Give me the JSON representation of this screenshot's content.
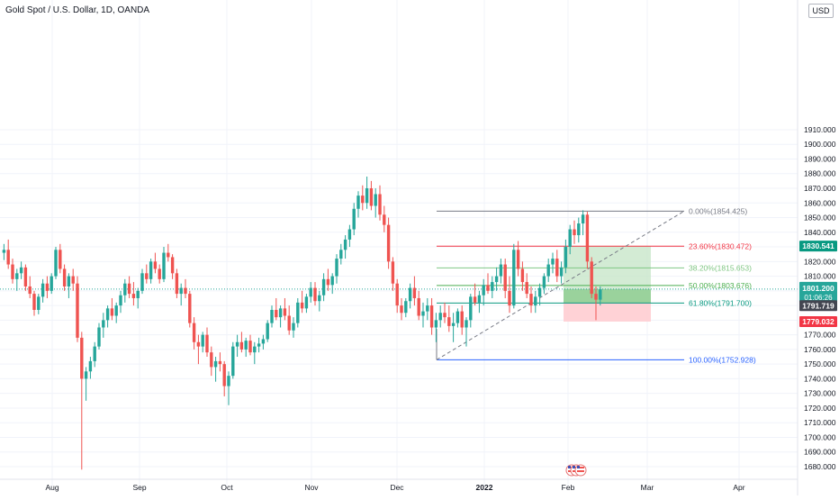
{
  "header": {
    "title": "Gold Spot / U.S. Dollar, 1D, OANDA",
    "currency_button": "USD"
  },
  "colors": {
    "up": "#26a69a",
    "down": "#ef5350",
    "fib_0": "#787b86",
    "fib_236": "#f23645",
    "fib_382": "#81c784",
    "fib_500": "#4caf50",
    "fib_618": "#089981",
    "fib_100": "#2962ff",
    "profit_zone": "#c8e6c9",
    "loss_zone": "#ffcdd2",
    "current_price_tag": "#26a69a",
    "target_tag": "#089981",
    "stop_tag": "#f23645"
  },
  "price_axis": {
    "ticks": [
      "1910.000",
      "1900.000",
      "1890.000",
      "1880.000",
      "1870.000",
      "1860.000",
      "1850.000",
      "1840.000",
      "1830.000",
      "1820.000",
      "1810.000",
      "1800.000",
      "1790.000",
      "1780.000",
      "1770.000",
      "1760.000",
      "1750.000",
      "1740.000",
      "1730.000",
      "1720.000",
      "1710.000",
      "1700.000",
      "1690.000",
      "1680.000"
    ]
  },
  "time_axis": {
    "labels": [
      "Aug",
      "Sep",
      "Oct",
      "Nov",
      "Dec",
      "2022",
      "Feb",
      "Mar",
      "Apr"
    ]
  },
  "price_tags": {
    "target": "1830.541",
    "current": "1801.200",
    "countdown": "01:06:26",
    "entry": "1791.719",
    "stop": "1779.032"
  },
  "fib_labels": {
    "l0": "0.00%(1854.425)",
    "l236": "23.60%(1830.472)",
    "l382": "38.20%(1815.653)",
    "l500": "50.00%(1803.676)",
    "l618": "61.80%(1791.700)",
    "l100": "100.00%(1752.928)"
  },
  "chart_data": {
    "type": "candlestick",
    "symbol": "Gold Spot / U.S. Dollar",
    "interval": "1D",
    "source": "OANDA",
    "ylim": [
      1675,
      1915
    ],
    "x_labels": [
      "Aug",
      "Sep",
      "Oct",
      "Nov",
      "Dec",
      "2022",
      "Feb",
      "Mar",
      "Apr"
    ],
    "fibonacci_retracement": [
      {
        "level": "0.00%",
        "price": 1854.425
      },
      {
        "level": "23.60%",
        "price": 1830.472
      },
      {
        "level": "38.20%",
        "price": 1815.653
      },
      {
        "level": "50.00%",
        "price": 1803.676
      },
      {
        "level": "61.80%",
        "price": 1791.7
      },
      {
        "level": "100.00%",
        "price": 1752.928
      }
    ],
    "long_position": {
      "entry": 1791.719,
      "target": 1830.541,
      "stop": 1779.032
    },
    "last_price": 1801.2,
    "candles": [
      [
        1826,
        1832,
        1821,
        1828
      ],
      [
        1828,
        1835,
        1815,
        1818
      ],
      [
        1818,
        1822,
        1805,
        1808
      ],
      [
        1808,
        1815,
        1800,
        1812
      ],
      [
        1812,
        1820,
        1808,
        1816
      ],
      [
        1816,
        1818,
        1800,
        1803
      ],
      [
        1803,
        1810,
        1795,
        1798
      ],
      [
        1798,
        1800,
        1783,
        1787
      ],
      [
        1787,
        1798,
        1784,
        1796
      ],
      [
        1796,
        1808,
        1792,
        1805
      ],
      [
        1805,
        1810,
        1795,
        1800
      ],
      [
        1800,
        1812,
        1798,
        1810
      ],
      [
        1810,
        1830,
        1808,
        1828
      ],
      [
        1828,
        1832,
        1812,
        1815
      ],
      [
        1815,
        1818,
        1800,
        1803
      ],
      [
        1803,
        1812,
        1795,
        1810
      ],
      [
        1810,
        1815,
        1800,
        1805
      ],
      [
        1805,
        1810,
        1765,
        1768
      ],
      [
        1768,
        1772,
        1678,
        1740
      ],
      [
        1740,
        1748,
        1725,
        1745
      ],
      [
        1745,
        1755,
        1740,
        1752
      ],
      [
        1752,
        1765,
        1748,
        1762
      ],
      [
        1762,
        1778,
        1760,
        1775
      ],
      [
        1775,
        1785,
        1768,
        1780
      ],
      [
        1780,
        1790,
        1775,
        1788
      ],
      [
        1788,
        1795,
        1780,
        1783
      ],
      [
        1783,
        1792,
        1778,
        1790
      ],
      [
        1790,
        1800,
        1785,
        1797
      ],
      [
        1797,
        1808,
        1792,
        1805
      ],
      [
        1805,
        1810,
        1795,
        1798
      ],
      [
        1798,
        1806,
        1790,
        1795
      ],
      [
        1795,
        1802,
        1788,
        1800
      ],
      [
        1800,
        1815,
        1798,
        1812
      ],
      [
        1812,
        1818,
        1805,
        1808
      ],
      [
        1808,
        1822,
        1805,
        1820
      ],
      [
        1820,
        1826,
        1812,
        1815
      ],
      [
        1815,
        1818,
        1805,
        1808
      ],
      [
        1808,
        1830,
        1806,
        1826
      ],
      [
        1826,
        1832,
        1820,
        1823
      ],
      [
        1823,
        1825,
        1808,
        1812
      ],
      [
        1812,
        1815,
        1795,
        1798
      ],
      [
        1798,
        1805,
        1790,
        1802
      ],
      [
        1802,
        1808,
        1795,
        1798
      ],
      [
        1798,
        1800,
        1775,
        1778
      ],
      [
        1778,
        1782,
        1760,
        1765
      ],
      [
        1765,
        1770,
        1750,
        1762
      ],
      [
        1762,
        1772,
        1758,
        1770
      ],
      [
        1770,
        1775,
        1755,
        1758
      ],
      [
        1758,
        1762,
        1742,
        1748
      ],
      [
        1748,
        1755,
        1738,
        1752
      ],
      [
        1752,
        1758,
        1745,
        1750
      ],
      [
        1750,
        1752,
        1728,
        1735
      ],
      [
        1735,
        1745,
        1722,
        1742
      ],
      [
        1742,
        1765,
        1740,
        1762
      ],
      [
        1762,
        1770,
        1755,
        1765
      ],
      [
        1765,
        1772,
        1758,
        1760
      ],
      [
        1760,
        1768,
        1755,
        1766
      ],
      [
        1766,
        1770,
        1756,
        1758
      ],
      [
        1758,
        1765,
        1750,
        1762
      ],
      [
        1762,
        1768,
        1758,
        1764
      ],
      [
        1764,
        1770,
        1760,
        1767
      ],
      [
        1767,
        1780,
        1765,
        1778
      ],
      [
        1778,
        1790,
        1775,
        1787
      ],
      [
        1787,
        1795,
        1780,
        1782
      ],
      [
        1782,
        1790,
        1775,
        1788
      ],
      [
        1788,
        1795,
        1780,
        1783
      ],
      [
        1783,
        1790,
        1770,
        1773
      ],
      [
        1773,
        1782,
        1768,
        1778
      ],
      [
        1778,
        1795,
        1775,
        1792
      ],
      [
        1792,
        1800,
        1785,
        1788
      ],
      [
        1788,
        1798,
        1785,
        1796
      ],
      [
        1796,
        1806,
        1792,
        1802
      ],
      [
        1802,
        1806,
        1790,
        1793
      ],
      [
        1793,
        1800,
        1786,
        1797
      ],
      [
        1797,
        1812,
        1793,
        1808
      ],
      [
        1808,
        1815,
        1800,
        1804
      ],
      [
        1804,
        1812,
        1798,
        1810
      ],
      [
        1810,
        1825,
        1805,
        1822
      ],
      [
        1822,
        1832,
        1818,
        1828
      ],
      [
        1828,
        1838,
        1822,
        1835
      ],
      [
        1835,
        1845,
        1830,
        1842
      ],
      [
        1842,
        1860,
        1838,
        1856
      ],
      [
        1856,
        1868,
        1850,
        1865
      ],
      [
        1865,
        1872,
        1855,
        1860
      ],
      [
        1860,
        1878,
        1856,
        1870
      ],
      [
        1870,
        1875,
        1855,
        1858
      ],
      [
        1858,
        1870,
        1850,
        1866
      ],
      [
        1866,
        1872,
        1848,
        1852
      ],
      [
        1852,
        1858,
        1840,
        1845
      ],
      [
        1845,
        1850,
        1815,
        1820
      ],
      [
        1820,
        1823,
        1800,
        1805
      ],
      [
        1805,
        1808,
        1785,
        1790
      ],
      [
        1790,
        1795,
        1780,
        1785
      ],
      [
        1785,
        1795,
        1782,
        1793
      ],
      [
        1793,
        1805,
        1788,
        1802
      ],
      [
        1802,
        1810,
        1790,
        1795
      ],
      [
        1795,
        1800,
        1780,
        1783
      ],
      [
        1783,
        1792,
        1775,
        1786
      ],
      [
        1786,
        1795,
        1780,
        1790
      ],
      [
        1790,
        1795,
        1770,
        1775
      ],
      [
        1775,
        1785,
        1765,
        1780
      ],
      [
        1780,
        1790,
        1775,
        1785
      ],
      [
        1785,
        1792,
        1778,
        1782
      ],
      [
        1782,
        1790,
        1772,
        1776
      ],
      [
        1776,
        1785,
        1765,
        1778
      ],
      [
        1778,
        1788,
        1775,
        1786
      ],
      [
        1786,
        1790,
        1770,
        1775
      ],
      [
        1775,
        1782,
        1762,
        1780
      ],
      [
        1780,
        1798,
        1775,
        1796
      ],
      [
        1796,
        1805,
        1790,
        1792
      ],
      [
        1792,
        1800,
        1785,
        1797
      ],
      [
        1797,
        1808,
        1790,
        1804
      ],
      [
        1804,
        1812,
        1798,
        1800
      ],
      [
        1800,
        1810,
        1795,
        1806
      ],
      [
        1806,
        1816,
        1800,
        1810
      ],
      [
        1810,
        1822,
        1805,
        1818
      ],
      [
        1818,
        1822,
        1795,
        1800
      ],
      [
        1800,
        1810,
        1785,
        1790
      ],
      [
        1790,
        1832,
        1788,
        1828
      ],
      [
        1828,
        1834,
        1810,
        1815
      ],
      [
        1815,
        1820,
        1800,
        1806
      ],
      [
        1806,
        1812,
        1795,
        1798
      ],
      [
        1798,
        1803,
        1785,
        1790
      ],
      [
        1790,
        1800,
        1785,
        1796
      ],
      [
        1796,
        1805,
        1790,
        1802
      ],
      [
        1802,
        1812,
        1798,
        1810
      ],
      [
        1810,
        1822,
        1806,
        1818
      ],
      [
        1818,
        1826,
        1812,
        1822
      ],
      [
        1822,
        1828,
        1806,
        1810
      ],
      [
        1810,
        1820,
        1805,
        1816
      ],
      [
        1816,
        1835,
        1812,
        1830
      ],
      [
        1830,
        1845,
        1825,
        1842
      ],
      [
        1842,
        1848,
        1832,
        1838
      ],
      [
        1838,
        1850,
        1833,
        1846
      ],
      [
        1846,
        1855,
        1838,
        1852
      ],
      [
        1852,
        1854,
        1815,
        1820
      ],
      [
        1820,
        1823,
        1795,
        1798
      ],
      [
        1798,
        1803,
        1780,
        1794
      ],
      [
        1794,
        1803,
        1790,
        1801
      ]
    ]
  }
}
